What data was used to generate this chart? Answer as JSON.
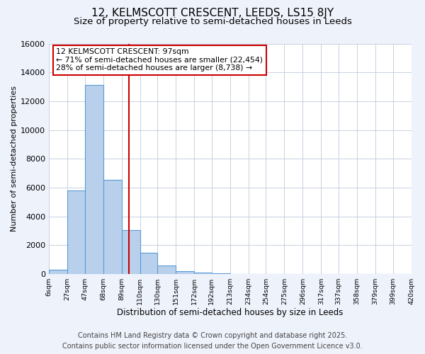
{
  "title": "12, KELMSCOTT CRESCENT, LEEDS, LS15 8JY",
  "subtitle": "Size of property relative to semi-detached houses in Leeds",
  "xlabel": "Distribution of semi-detached houses by size in Leeds",
  "ylabel": "Number of semi-detached properties",
  "bin_edges": [
    6,
    27,
    47,
    68,
    89,
    110,
    130,
    151,
    172,
    192,
    213,
    234,
    254,
    275,
    296,
    317,
    337,
    358,
    379,
    399,
    420
  ],
  "bin_counts": [
    270,
    5800,
    13100,
    6550,
    3050,
    1450,
    600,
    200,
    100,
    50,
    0,
    0,
    0,
    0,
    0,
    0,
    0,
    0,
    0,
    0
  ],
  "bar_color": "#b8d0ec",
  "bar_edge_color": "#5b9bd5",
  "property_size": 97,
  "vline_color": "#cc0000",
  "annotation_line1": "12 KELMSCOTT CRESCENT: 97sqm",
  "annotation_line2": "← 71% of semi-detached houses are smaller (22,454)",
  "annotation_line3": "28% of semi-detached houses are larger (8,738) →",
  "annotation_box_color": "#ffffff",
  "annotation_box_edge_color": "#cc0000",
  "ylim": [
    0,
    16000
  ],
  "yticks": [
    0,
    2000,
    4000,
    6000,
    8000,
    10000,
    12000,
    14000,
    16000
  ],
  "tick_labels": [
    "6sqm",
    "27sqm",
    "47sqm",
    "68sqm",
    "89sqm",
    "110sqm",
    "130sqm",
    "151sqm",
    "172sqm",
    "192sqm",
    "213sqm",
    "234sqm",
    "254sqm",
    "275sqm",
    "296sqm",
    "317sqm",
    "337sqm",
    "358sqm",
    "379sqm",
    "399sqm",
    "420sqm"
  ],
  "footer_line1": "Contains HM Land Registry data © Crown copyright and database right 2025.",
  "footer_line2": "Contains public sector information licensed under the Open Government Licence v3.0.",
  "background_color": "#eef2fb",
  "plot_background_color": "#ffffff",
  "grid_color": "#c8d0e0",
  "title_fontsize": 11,
  "subtitle_fontsize": 9.5,
  "footer_fontsize": 7.0,
  "ylabel_fontsize": 8,
  "xlabel_fontsize": 8.5,
  "ytick_fontsize": 8,
  "xtick_fontsize": 6.8,
  "annot_fontsize": 7.8
}
